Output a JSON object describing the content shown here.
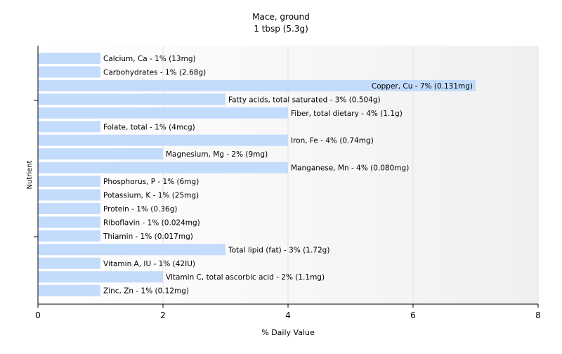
{
  "chart_data": {
    "type": "bar",
    "orientation": "horizontal",
    "title": "Mace, ground",
    "subtitle": "1 tbsp (5.3g)",
    "xlabel": "% Daily Value",
    "ylabel": "Nutrient",
    "xlim": [
      0,
      8
    ],
    "xticks": [
      "0",
      "2",
      "4",
      "6",
      "8"
    ],
    "grid": true,
    "bar_color": "#c4dcfc",
    "bars": [
      {
        "label": "Calcium, Ca - 1% (13mg)",
        "value": 1
      },
      {
        "label": "Carbohydrates - 1% (2.68g)",
        "value": 1
      },
      {
        "label": "Copper, Cu - 7% (0.131mg)",
        "value": 7
      },
      {
        "label": "Fatty acids, total saturated - 3% (0.504g)",
        "value": 3
      },
      {
        "label": "Fiber, total dietary - 4% (1.1g)",
        "value": 4
      },
      {
        "label": "Folate, total - 1% (4mcg)",
        "value": 1
      },
      {
        "label": "Iron, Fe - 4% (0.74mg)",
        "value": 4
      },
      {
        "label": "Magnesium, Mg - 2% (9mg)",
        "value": 2
      },
      {
        "label": "Manganese, Mn - 4% (0.080mg)",
        "value": 4
      },
      {
        "label": "Phosphorus, P - 1% (6mg)",
        "value": 1
      },
      {
        "label": "Potassium, K - 1% (25mg)",
        "value": 1
      },
      {
        "label": "Protein - 1% (0.36g)",
        "value": 1
      },
      {
        "label": "Riboflavin - 1% (0.024mg)",
        "value": 1
      },
      {
        "label": "Thiamin - 1% (0.017mg)",
        "value": 1
      },
      {
        "label": "Total lipid (fat) - 3% (1.72g)",
        "value": 3
      },
      {
        "label": "Vitamin A, IU - 1% (42IU)",
        "value": 1
      },
      {
        "label": "Vitamin C, total ascorbic acid - 2% (1.1mg)",
        "value": 2
      },
      {
        "label": "Zinc, Zn - 1% (0.12mg)",
        "value": 1
      }
    ]
  }
}
